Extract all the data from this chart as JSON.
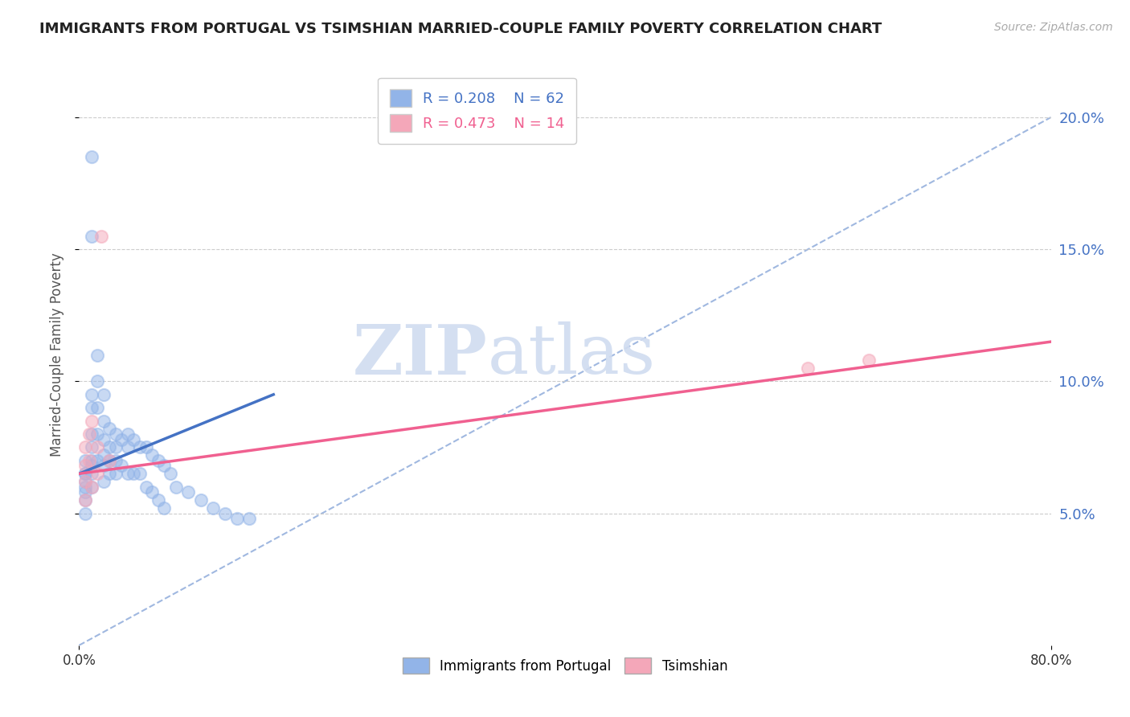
{
  "title": "IMMIGRANTS FROM PORTUGAL VS TSIMSHIAN MARRIED-COUPLE FAMILY POVERTY CORRELATION CHART",
  "source": "Source: ZipAtlas.com",
  "ylabel": "Married-Couple Family Poverty",
  "xlim": [
    0.0,
    0.8
  ],
  "ylim": [
    0.0,
    0.22
  ],
  "yticks": [
    0.05,
    0.1,
    0.15,
    0.2
  ],
  "ytick_labels": [
    "5.0%",
    "10.0%",
    "15.0%",
    "20.0%"
  ],
  "xticks": [
    0.0,
    0.8
  ],
  "xtick_labels": [
    "0.0%",
    "80.0%"
  ],
  "legend_r1": "R = 0.208",
  "legend_n1": "N = 62",
  "legend_r2": "R = 0.473",
  "legend_n2": "N = 14",
  "color_portugal": "#92b4e8",
  "color_tsimshian": "#f4a7b9",
  "color_portugal_line": "#4472c4",
  "color_tsimshian_line": "#f06090",
  "color_diagonal": "#a0b8e0",
  "watermark_zip": "ZIP",
  "watermark_atlas": "atlas",
  "portugal_scatter_x": [
    0.01,
    0.01,
    0.005,
    0.005,
    0.005,
    0.005,
    0.005,
    0.005,
    0.005,
    0.005,
    0.01,
    0.01,
    0.01,
    0.01,
    0.01,
    0.01,
    0.01,
    0.01,
    0.015,
    0.015,
    0.015,
    0.015,
    0.015,
    0.02,
    0.02,
    0.02,
    0.02,
    0.02,
    0.02,
    0.025,
    0.025,
    0.025,
    0.025,
    0.03,
    0.03,
    0.03,
    0.03,
    0.035,
    0.035,
    0.04,
    0.04,
    0.04,
    0.045,
    0.045,
    0.05,
    0.05,
    0.055,
    0.055,
    0.06,
    0.06,
    0.065,
    0.065,
    0.07,
    0.07,
    0.075,
    0.08,
    0.09,
    0.1,
    0.11,
    0.12,
    0.13,
    0.14
  ],
  "portugal_scatter_y": [
    0.185,
    0.155,
    0.07,
    0.065,
    0.065,
    0.062,
    0.06,
    0.058,
    0.055,
    0.05,
    0.095,
    0.09,
    0.08,
    0.075,
    0.07,
    0.068,
    0.065,
    0.06,
    0.11,
    0.1,
    0.09,
    0.08,
    0.07,
    0.095,
    0.085,
    0.078,
    0.072,
    0.068,
    0.062,
    0.082,
    0.075,
    0.07,
    0.065,
    0.08,
    0.075,
    0.07,
    0.065,
    0.078,
    0.068,
    0.08,
    0.075,
    0.065,
    0.078,
    0.065,
    0.075,
    0.065,
    0.075,
    0.06,
    0.072,
    0.058,
    0.07,
    0.055,
    0.068,
    0.052,
    0.065,
    0.06,
    0.058,
    0.055,
    0.052,
    0.05,
    0.048,
    0.048
  ],
  "tsimshian_scatter_x": [
    0.005,
    0.005,
    0.005,
    0.005,
    0.008,
    0.008,
    0.01,
    0.01,
    0.015,
    0.015,
    0.018,
    0.025,
    0.6,
    0.65
  ],
  "tsimshian_scatter_y": [
    0.075,
    0.068,
    0.062,
    0.055,
    0.08,
    0.07,
    0.085,
    0.06,
    0.075,
    0.065,
    0.155,
    0.07,
    0.105,
    0.108
  ],
  "portugal_line_x": [
    0.0,
    0.16
  ],
  "portugal_line_y": [
    0.065,
    0.095
  ],
  "tsimshian_line_x": [
    0.0,
    0.8
  ],
  "tsimshian_line_y": [
    0.065,
    0.115
  ],
  "diagonal_line_x": [
    0.0,
    0.8
  ],
  "diagonal_line_y": [
    0.0,
    0.2
  ]
}
